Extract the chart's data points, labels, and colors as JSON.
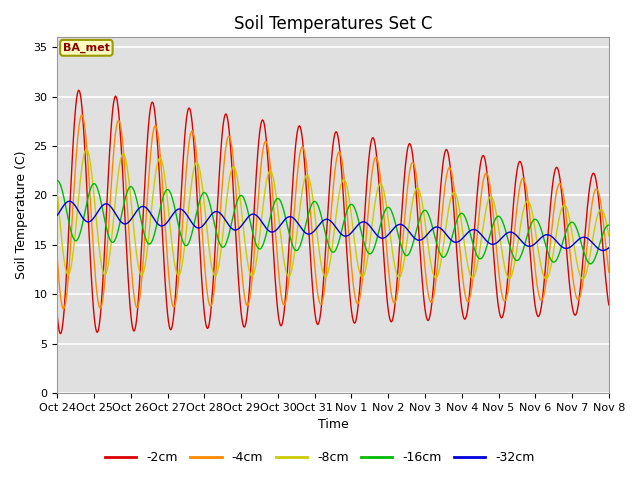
{
  "title": "Soil Temperatures Set C",
  "xlabel": "Time",
  "ylabel": "Soil Temperature (C)",
  "ylim": [
    0,
    36
  ],
  "yticks": [
    0,
    5,
    10,
    15,
    20,
    25,
    30,
    35
  ],
  "xtick_labels": [
    "Oct 24",
    "Oct 25",
    "Oct 26",
    "Oct 27",
    "Oct 28",
    "Oct 29",
    "Oct 30",
    "Oct 31",
    "Nov 1",
    "Nov 2",
    "Nov 3",
    "Nov 4",
    "Nov 5",
    "Nov 6",
    "Nov 7",
    "Nov 8"
  ],
  "label_box": "BA_met",
  "legend_labels": [
    "-2cm",
    "-4cm",
    "-8cm",
    "-16cm",
    "-32cm"
  ],
  "line_colors": [
    "#dd0000",
    "#ff8800",
    "#cccc00",
    "#00bb00",
    "#0000dd"
  ],
  "fig_facecolor": "#ffffff",
  "ax_facecolor": "#e0e0e0",
  "title_fontsize": 12,
  "axis_fontsize": 9,
  "tick_fontsize": 8
}
